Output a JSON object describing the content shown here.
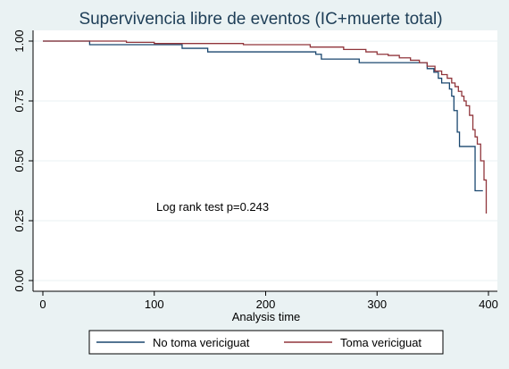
{
  "chart_data": {
    "type": "line",
    "title": "Supervivencia libre de eventos (IC+muerte total)",
    "xlabel": "Analysis time",
    "ylabel": "",
    "xlim": [
      0,
      400
    ],
    "ylim": [
      0,
      1
    ],
    "x_ticks": [
      "0",
      "100",
      "200",
      "300",
      "400"
    ],
    "y_ticks": [
      "0.00",
      "0.25",
      "0.50",
      "0.75",
      "1.00"
    ],
    "grid": true,
    "legend_position": "bottom",
    "annotation": "Log rank test p=0.243",
    "series": [
      {
        "name": "No toma vericiguat",
        "color": "#1a476f",
        "step_points": [
          [
            0,
            1.0
          ],
          [
            42,
            0.985
          ],
          [
            125,
            0.97
          ],
          [
            148,
            0.955
          ],
          [
            245,
            0.945
          ],
          [
            250,
            0.925
          ],
          [
            284,
            0.91
          ],
          [
            345,
            0.885
          ],
          [
            351,
            0.87
          ],
          [
            355,
            0.845
          ],
          [
            358,
            0.825
          ],
          [
            365,
            0.8
          ],
          [
            367,
            0.77
          ],
          [
            369,
            0.71
          ],
          [
            372,
            0.62
          ],
          [
            374,
            0.56
          ],
          [
            388,
            0.375
          ],
          [
            395,
            0.375
          ]
        ]
      },
      {
        "name": "Toma vericiguat",
        "color": "#90353b",
        "step_points": [
          [
            0,
            1.0
          ],
          [
            75,
            0.995
          ],
          [
            100,
            0.99
          ],
          [
            180,
            0.985
          ],
          [
            240,
            0.975
          ],
          [
            270,
            0.965
          ],
          [
            290,
            0.955
          ],
          [
            300,
            0.945
          ],
          [
            310,
            0.94
          ],
          [
            320,
            0.93
          ],
          [
            330,
            0.92
          ],
          [
            338,
            0.91
          ],
          [
            345,
            0.895
          ],
          [
            352,
            0.875
          ],
          [
            358,
            0.86
          ],
          [
            363,
            0.845
          ],
          [
            367,
            0.825
          ],
          [
            370,
            0.81
          ],
          [
            373,
            0.79
          ],
          [
            376,
            0.77
          ],
          [
            378,
            0.75
          ],
          [
            380,
            0.73
          ],
          [
            383,
            0.69
          ],
          [
            386,
            0.63
          ],
          [
            388,
            0.6
          ],
          [
            390,
            0.57
          ],
          [
            393,
            0.5
          ],
          [
            396,
            0.42
          ],
          [
            398,
            0.28
          ]
        ]
      }
    ]
  }
}
